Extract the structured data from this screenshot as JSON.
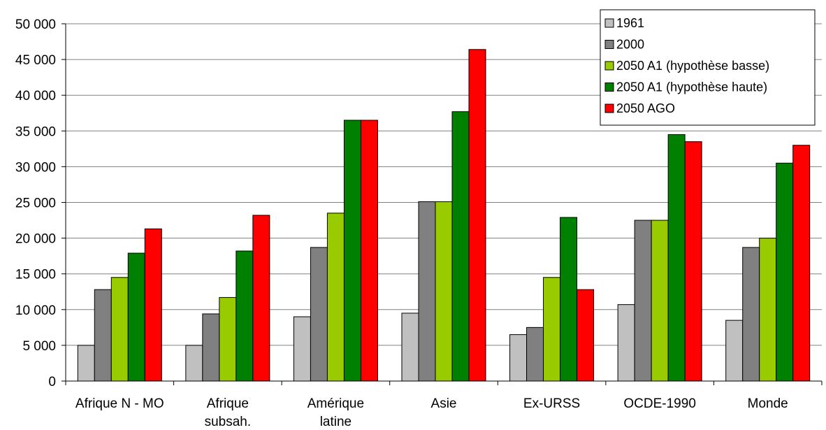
{
  "chart_data": {
    "type": "bar",
    "title": "",
    "xlabel": "",
    "ylabel": "",
    "ylim": [
      0,
      50000
    ],
    "yticks": [
      0,
      5000,
      10000,
      15000,
      20000,
      25000,
      30000,
      35000,
      40000,
      45000,
      50000
    ],
    "ytick_labels": [
      "0",
      "5 000",
      "10 000",
      "15 000",
      "20 000",
      "25 000",
      "30 000",
      "35 000",
      "40 000",
      "45 000",
      "50 000"
    ],
    "grid": true,
    "legend_position": "top-right",
    "categories": [
      [
        "Afrique N - MO"
      ],
      [
        "Afrique",
        "subsah."
      ],
      [
        "Amérique",
        "latine"
      ],
      [
        "Asie"
      ],
      [
        "Ex-URSS"
      ],
      [
        "OCDE-1990"
      ],
      [
        "Monde"
      ]
    ],
    "series": [
      {
        "name": "1961",
        "color": "#c0c0c0",
        "values": [
          5000,
          5000,
          9000,
          9500,
          6500,
          10700,
          8500
        ]
      },
      {
        "name": "2000",
        "color": "#808080",
        "values": [
          12800,
          9400,
          18700,
          25100,
          7500,
          22500,
          18700
        ]
      },
      {
        "name": "2050 A1 (hypothèse basse)",
        "color": "#99cc00",
        "values": [
          14500,
          11700,
          23500,
          25100,
          14500,
          22500,
          20000
        ]
      },
      {
        "name": "2050 A1 (hypothèse haute)",
        "color": "#008000",
        "values": [
          17900,
          18200,
          36500,
          37700,
          22900,
          34500,
          30500
        ]
      },
      {
        "name": "2050 AGO",
        "color": "#ff0000",
        "values": [
          21300,
          23200,
          36500,
          46400,
          12800,
          33500,
          33000
        ]
      }
    ]
  }
}
